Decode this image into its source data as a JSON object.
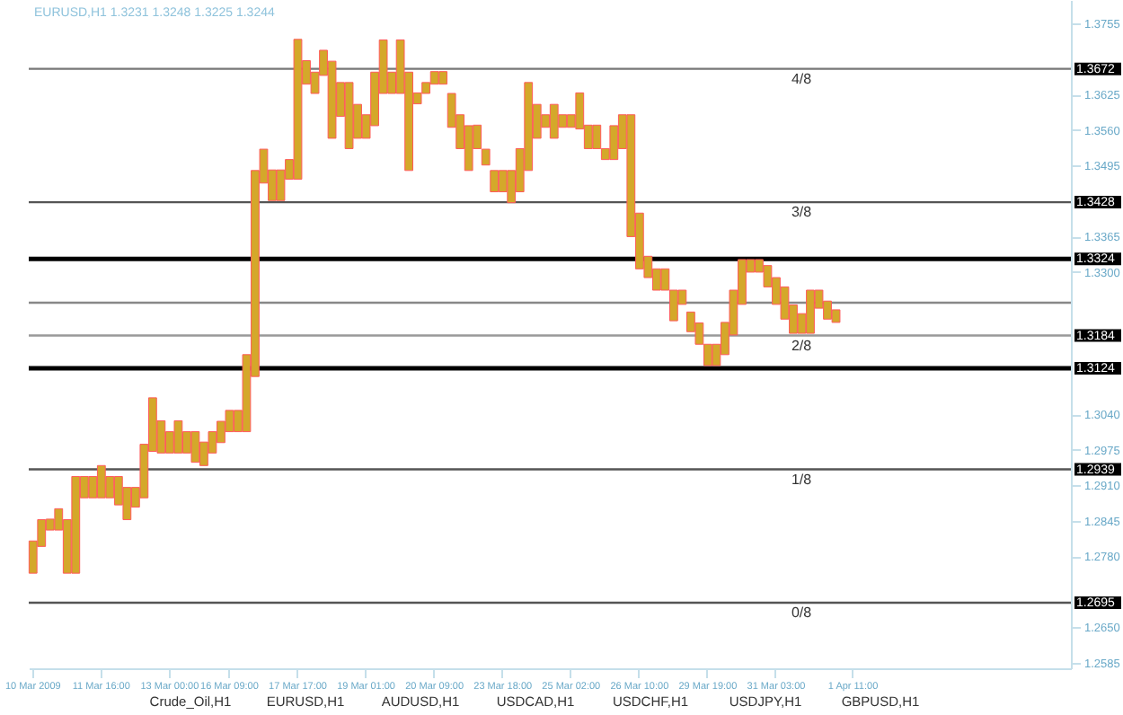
{
  "chart_data": {
    "type": "bar",
    "title": "EURUSD,H1  1.3231 1.3248 1.3225 1.3244",
    "categories": [
      "10 Mar 2009",
      null,
      null,
      null,
      null,
      null,
      null,
      null,
      "11 Mar 16:00",
      null,
      null,
      null,
      null,
      null,
      null,
      null,
      "13 Mar 00:00",
      null,
      null,
      null,
      null,
      null,
      null,
      "16 Mar 09:00",
      null,
      null,
      null,
      null,
      null,
      null,
      null,
      "17 Mar 17:00",
      null,
      null,
      null,
      null,
      null,
      null,
      null,
      "19 Mar 01:00",
      null,
      null,
      null,
      null,
      null,
      null,
      null,
      "20 Mar 09:00",
      null,
      null,
      null,
      null,
      null,
      null,
      null,
      "23 Mar 18:00",
      null,
      null,
      null,
      null,
      null,
      null,
      null,
      "25 Mar 02:00",
      null,
      null,
      null,
      null,
      null,
      null,
      null,
      "26 Mar 10:00",
      null,
      null,
      null,
      null,
      null,
      null,
      null,
      "29 Mar 19:00",
      null,
      null,
      null,
      null,
      null,
      null,
      null,
      "31 Mar 03:00",
      null,
      null,
      null,
      null,
      null,
      null,
      null,
      null,
      "1 Apr 11:00",
      null,
      null,
      null,
      null,
      null,
      null,
      null,
      null,
      null,
      null,
      null,
      null,
      null,
      null,
      null,
      null,
      null,
      null,
      null,
      null,
      null,
      null,
      null,
      null,
      null
    ],
    "base": [
      1.2749,
      1.2798,
      1.2828,
      1.2828,
      1.2749,
      1.2749,
      1.2887,
      1.2887,
      1.2887,
      1.2887,
      1.2874,
      1.2847,
      1.287,
      1.2887,
      1.2972,
      1.2969,
      1.2969,
      1.2969,
      1.2969,
      1.2952,
      1.2946,
      1.2969,
      1.2988,
      1.3008,
      1.3008,
      1.3008,
      1.3109,
      1.3463,
      1.3431,
      1.3431,
      1.347,
      1.347,
      1.3644,
      1.3627,
      1.366,
      1.3545,
      1.3585,
      1.3526,
      1.3545,
      1.3545,
      1.3568,
      1.3627,
      1.3627,
      1.3627,
      1.3486,
      1.3608,
      1.3627,
      1.3644,
      1.3644,
      1.3565,
      1.3526,
      1.3486,
      1.3526,
      1.3496,
      1.3447,
      1.3447,
      1.3427,
      1.3447,
      1.3486,
      1.3545,
      1.3565,
      1.3545,
      1.3565,
      1.3565,
      1.3562,
      1.3526,
      1.3526,
      1.3506,
      1.3506,
      1.3526,
      1.3365,
      1.3306,
      1.329,
      1.3267,
      1.3267,
      1.3211,
      1.3241,
      1.3191,
      1.3168,
      1.3129,
      1.3129,
      1.3149,
      1.3185,
      1.3241,
      1.33,
      1.33,
      1.3273,
      1.3241,
      1.3214,
      1.3188,
      1.3188,
      1.3188,
      1.3234,
      1.3214,
      1.3208,
      null,
      null,
      null,
      null,
      null,
      null,
      null,
      null,
      null,
      null,
      null,
      null,
      null,
      null,
      null,
      null,
      null,
      null,
      null,
      null,
      null,
      null,
      null,
      null,
      null,
      null,
      null
    ],
    "values": [
      0.0059,
      0.0049,
      0.002,
      0.0039,
      0.0098,
      0.0177,
      0.0039,
      0.0039,
      0.0059,
      0.0039,
      0.0052,
      0.0059,
      0.0036,
      0.0098,
      0.0098,
      0.0059,
      0.0039,
      0.0059,
      0.0039,
      0.0056,
      0.0043,
      0.0039,
      0.0039,
      0.0039,
      0.0039,
      0.0141,
      0.0377,
      0.0062,
      0.0056,
      0.0056,
      0.0036,
      0.0256,
      0.0043,
      0.0039,
      0.0046,
      0.0141,
      0.0062,
      0.0121,
      0.0062,
      0.0043,
      0.0098,
      0.0098,
      0.0039,
      0.0098,
      0.018,
      0.002,
      0.002,
      0.0023,
      0.0023,
      0.0062,
      0.0062,
      0.0082,
      0.0043,
      0.0029,
      0.0039,
      0.0039,
      0.0059,
      0.0079,
      0.0161,
      0.0062,
      0.0023,
      0.0062,
      0.0023,
      0.0023,
      0.0066,
      0.0043,
      0.0043,
      0.002,
      0.0062,
      0.0062,
      0.0223,
      0.0102,
      0.0039,
      0.0039,
      0.0039,
      0.0056,
      0.0026,
      0.0036,
      0.0039,
      0.0039,
      0.0039,
      0.0059,
      0.0082,
      0.0082,
      0.0023,
      0.0023,
      0.0039,
      0.0049,
      0.0059,
      0.0052,
      0.0036,
      0.0079,
      0.0033,
      0.0033,
      0.0023,
      null,
      null,
      null,
      null,
      null,
      null,
      null,
      null,
      null,
      null,
      null,
      null,
      null,
      null,
      null,
      null,
      null,
      null,
      null,
      null,
      null,
      null,
      null,
      null,
      null,
      null,
      null
    ],
    "color": "#d4a82a",
    "ylim": [
      1.2575,
      1.3798
    ],
    "yticks": [
      1.2585,
      {
        "value": 1.265,
        "label": "1.2650"
      },
      {
        "value": 1.278,
        "label": "1.2780"
      },
      1.2845,
      {
        "value": 1.291,
        "label": "1.2910"
      },
      1.2975,
      {
        "value": 1.304,
        "label": "1.3040"
      },
      {
        "value": 1.33,
        "label": "1.3300"
      },
      1.3365,
      1.3495,
      {
        "value": 1.356,
        "label": "1.3560"
      },
      1.3625,
      1.3755
    ],
    "ref_lines": [
      {
        "axis": "y",
        "value": 1.3672,
        "label": "1.3672",
        "color": "#777777"
      },
      {
        "axis": "y",
        "value": 1.3428,
        "label": "1.3428",
        "color": "#555555"
      },
      {
        "axis": "y",
        "value": 1.3324,
        "label": "1.3324",
        "color": "#000000"
      },
      {
        "axis": "y",
        "value": 1.3244,
        "label": null,
        "color": "#888888"
      },
      {
        "axis": "y",
        "value": 1.3184,
        "label": "1.3184",
        "color": "#999999"
      },
      {
        "axis": "y",
        "value": 1.3124,
        "label": "1.3124",
        "color": "#000000"
      },
      {
        "axis": "y",
        "value": 1.2939,
        "label": "1.2939",
        "color": "#555555"
      },
      {
        "axis": "y",
        "value": 1.2695,
        "label": "1.2695",
        "color": "#555555"
      }
    ],
    "annotations": [
      {
        "text": "4/8",
        "y": 1.3672
      },
      {
        "text": "3/8",
        "y": 1.3428
      },
      {
        "text": "2/8",
        "y": 1.3184
      },
      {
        "text": "1/8",
        "y": 1.2939
      },
      {
        "text": "0/8",
        "y": 1.2695
      },
      "Crude_Oil,H1",
      "EURUSD,H1",
      "AUDUSD,H1",
      "USDCAD,H1",
      "USDCHF,H1",
      "USDJPY,H1",
      "GBPUSD,H1"
    ],
    "grid": false
  }
}
